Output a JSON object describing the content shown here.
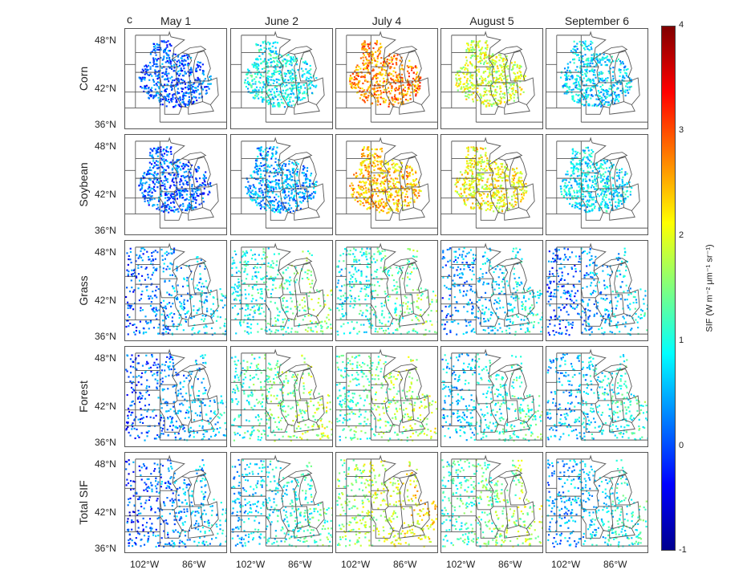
{
  "panel_label": "c",
  "columns": [
    "May 1",
    "June 2",
    "July 4",
    "August 5",
    "September 6"
  ],
  "rows": [
    "Corn",
    "Soybean",
    "Grass",
    "Forest",
    "Total SIF"
  ],
  "y_ticks": [
    "48°N",
    "42°N",
    "36°N"
  ],
  "x_ticks": [
    "102°W",
    "86°W"
  ],
  "colorbar": {
    "label": "SIF (W m⁻² μm⁻¹ sr⁻¹)",
    "ticks": [
      "4",
      "3",
      "2",
      "1",
      "0",
      "-1"
    ],
    "range": [
      -1,
      4
    ],
    "colormap": "jet"
  },
  "chart_data": {
    "type": "heatmap",
    "title": "",
    "description_units": "mean SIF per panel (estimated)",
    "categories_x": [
      "May 1",
      "June 2",
      "July 4",
      "August 5",
      "September 6"
    ],
    "categories_y": [
      "Corn",
      "Soybean",
      "Grass",
      "Forest",
      "Total SIF"
    ],
    "values": [
      [
        0.1,
        0.9,
        2.7,
        1.9,
        0.7
      ],
      [
        0.1,
        0.4,
        2.4,
        2.1,
        0.8
      ],
      [
        0.4,
        1.2,
        1.2,
        0.6,
        0.4
      ],
      [
        0.3,
        1.4,
        1.5,
        0.9,
        0.8
      ],
      [
        0.3,
        0.9,
        1.9,
        1.4,
        0.7
      ]
    ],
    "zlim": [
      -1,
      4
    ]
  }
}
